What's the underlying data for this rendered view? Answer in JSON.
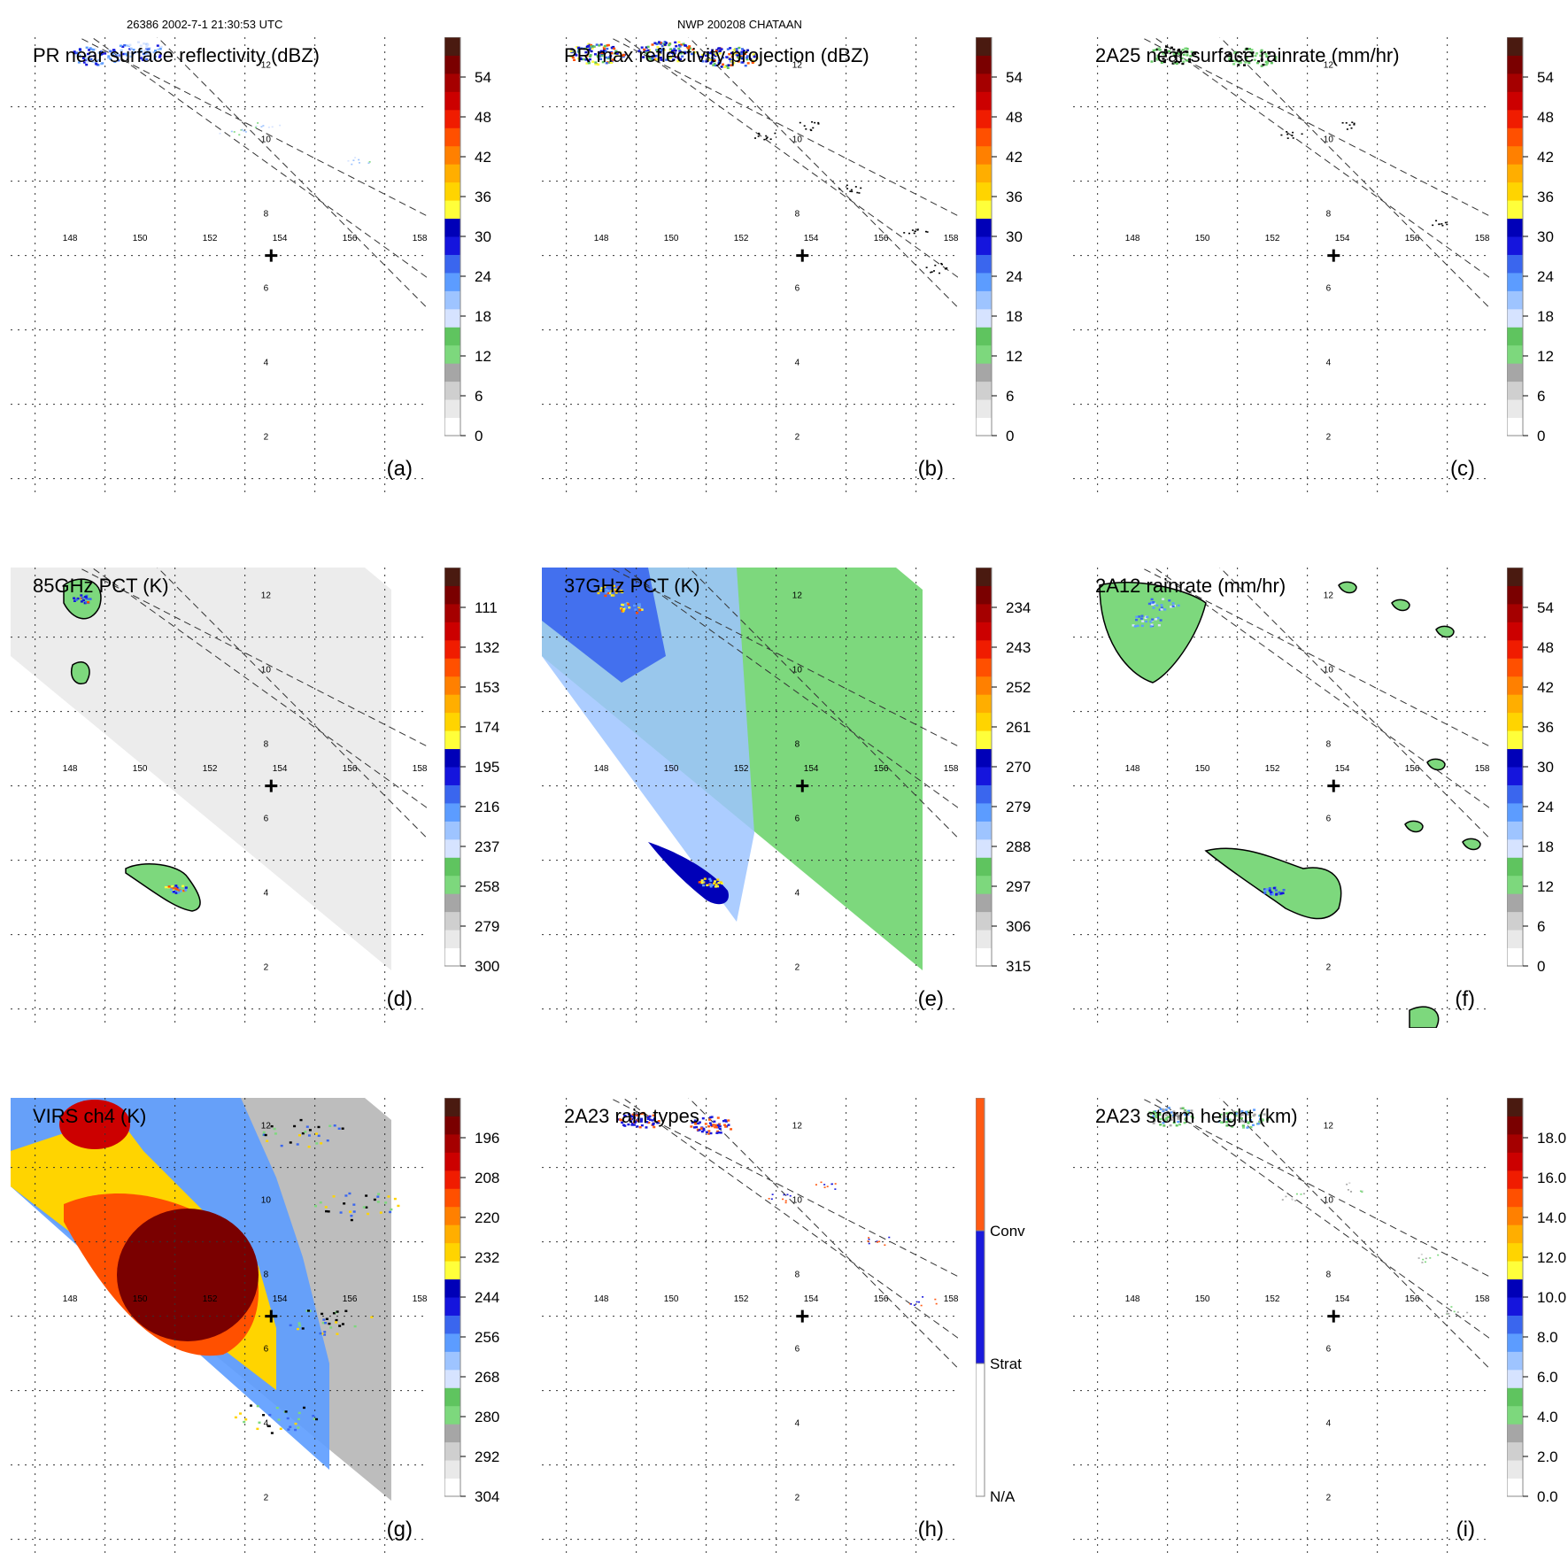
{
  "header": {
    "orbit_time": "26386 2002-7-1 21:30:53 UTC",
    "storm": "NWP 200208 CHATAAN"
  },
  "map": {
    "lon_labels": [
      "148",
      "150",
      "152",
      "154",
      "156",
      "158"
    ],
    "lat_labels": [
      "2",
      "4",
      "6",
      "8",
      "10",
      "12"
    ]
  },
  "panels": [
    {
      "title": "PR near surface reflectivity (dBZ)",
      "label": "(a)",
      "type": "pr_a",
      "colorbar": {
        "ticks": [
          "0",
          "6",
          "12",
          "18",
          "24",
          "30",
          "36",
          "42",
          "48",
          "54"
        ],
        "top": "max"
      }
    },
    {
      "title": "PR max reflectivity projection (dBZ)",
      "label": "(b)",
      "type": "pr_b",
      "colorbar": {
        "ticks": [
          "0",
          "6",
          "12",
          "18",
          "24",
          "30",
          "36",
          "42",
          "48",
          "54"
        ],
        "top": "max"
      }
    },
    {
      "title": "2A25 near surface rainrate (mm/hr)",
      "label": "(c)",
      "type": "pr_c",
      "colorbar": {
        "ticks": [
          "0",
          "6",
          "12",
          "18",
          "24",
          "30",
          "36",
          "42",
          "48",
          "54"
        ],
        "top": "max"
      }
    },
    {
      "title": "85GHz PCT (K)",
      "label": "(d)",
      "type": "tmi_d",
      "colorbar": {
        "ticks": [
          "300",
          "279",
          "258",
          "237",
          "216",
          "195",
          "174",
          "153",
          "132",
          "111"
        ],
        "top": "max"
      }
    },
    {
      "title": "37GHz PCT (K)",
      "label": "(e)",
      "type": "tmi_e",
      "colorbar": {
        "ticks": [
          "315",
          "306",
          "297",
          "288",
          "279",
          "270",
          "261",
          "252",
          "243",
          "234"
        ],
        "top": "max"
      }
    },
    {
      "title": "2A12 rainrate (mm/hr)",
      "label": "(f)",
      "type": "tmi_f",
      "colorbar": {
        "ticks": [
          "0",
          "6",
          "12",
          "18",
          "24",
          "30",
          "36",
          "42",
          "48",
          "54"
        ],
        "top": "max"
      }
    },
    {
      "title": "VIRS ch4 (K)",
      "label": "(g)",
      "type": "virs_g",
      "colorbar": {
        "ticks": [
          "304",
          "292",
          "280",
          "268",
          "256",
          "244",
          "232",
          "220",
          "208",
          "196"
        ],
        "top": "max"
      }
    },
    {
      "title": "2A23 rain types",
      "label": "(h)",
      "type": "rt_h",
      "colorbar": {
        "categories": [
          "N/A",
          "Strat",
          "Conv"
        ]
      }
    },
    {
      "title": "2A23 storm height (km)",
      "label": "(i)",
      "type": "sh_i",
      "colorbar": {
        "ticks": [
          "0.0",
          "2.0",
          "4.0",
          "6.0",
          "8.0",
          "10.0",
          "12.0",
          "14.0",
          "16.0",
          "18.0"
        ],
        "top": "max"
      }
    }
  ],
  "colors": {
    "seq": [
      "#ffffff",
      "#e9e9e9",
      "#cfcfcf",
      "#a6a6a6",
      "#7dd87d",
      "#5fc45f",
      "#d6e3ff",
      "#9ec4ff",
      "#5c9cff",
      "#3a66ee",
      "#1515dd",
      "#0000b8",
      "#ffff3a",
      "#ffd400",
      "#ffae00",
      "#ff8000",
      "#ff5000",
      "#f01c00",
      "#cc0000",
      "#a50000",
      "#7a0000",
      "#4a1a10"
    ],
    "rain_conv": "#ff5a14",
    "rain_strat": "#1a1adc",
    "rain_na": "#ffffff"
  }
}
